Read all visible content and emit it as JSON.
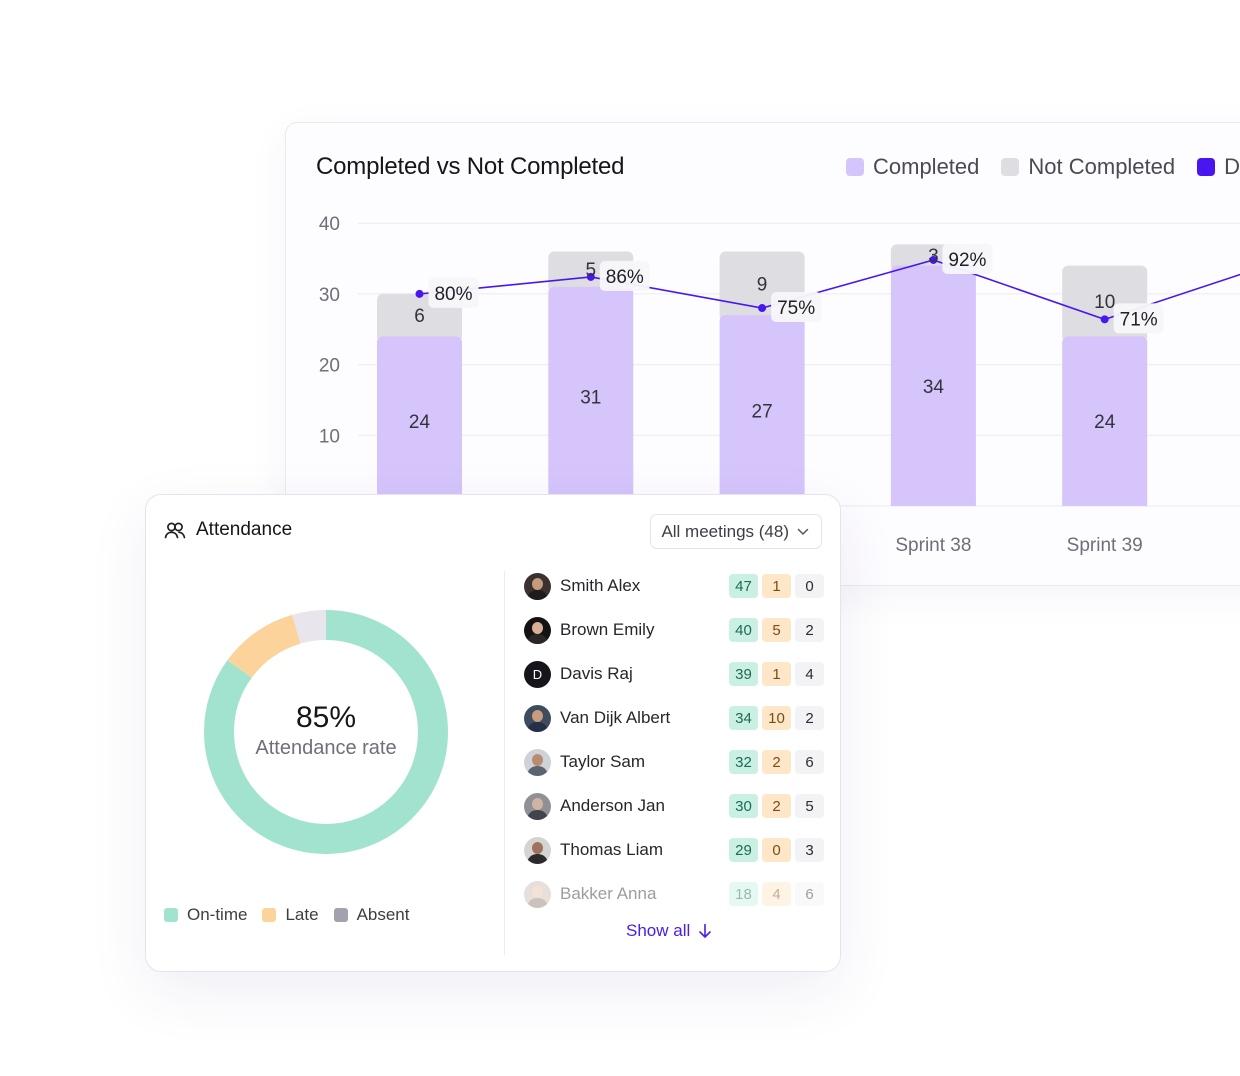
{
  "chart": {
    "title": "Completed vs Not Completed",
    "legend": [
      {
        "label": "Completed",
        "color": "#d5c5fb"
      },
      {
        "label": "Not Completed",
        "color": "#dedde2"
      },
      {
        "label": "D",
        "color": "#4a16f0"
      }
    ],
    "y_ticks": [
      "40",
      "30",
      "20",
      "10"
    ],
    "x_labels": [
      "Sprint 38",
      "Sprint 39"
    ]
  },
  "chart_data": {
    "type": "bar",
    "stacked": true,
    "categories": [
      "",
      "",
      "",
      "Sprint 38",
      "Sprint 39"
    ],
    "series": [
      {
        "name": "Completed",
        "values": [
          24,
          31,
          27,
          34,
          24
        ]
      },
      {
        "name": "Not Completed",
        "values": [
          6,
          5,
          9,
          3,
          10
        ]
      }
    ],
    "line_series": {
      "values": [
        80,
        86,
        75,
        92,
        71
      ],
      "labels": [
        "80%",
        "86%",
        "75%",
        "92%",
        "71%"
      ]
    },
    "ylim": [
      0,
      40
    ],
    "y_ticks": [
      10,
      20,
      30,
      40
    ],
    "grid": true,
    "legend_position": "top-right"
  },
  "attendance": {
    "title": "Attendance",
    "filter_label": "All meetings (48)",
    "rate_value": "85%",
    "rate_label": "Attendance rate",
    "donut": {
      "segments": [
        {
          "name": "On-time",
          "fraction": 0.85,
          "color": "#a1e3cf"
        },
        {
          "name": "Late",
          "fraction": 0.105,
          "color": "#fdd39c"
        },
        {
          "name": "Absent",
          "fraction": 0.045,
          "color": "#e8e6ec"
        }
      ]
    },
    "legend": [
      {
        "label": "On-time",
        "color": "#a1e3cf"
      },
      {
        "label": "Late",
        "color": "#fdd39c"
      },
      {
        "label": "Absent",
        "color": "#a3a1ab"
      }
    ],
    "people": [
      {
        "name": "Smith Alex",
        "on_time": "47",
        "late": "1",
        "absent": "0"
      },
      {
        "name": "Brown Emily",
        "on_time": "40",
        "late": "5",
        "absent": "2"
      },
      {
        "name": "Davis Raj",
        "initial": "D",
        "on_time": "39",
        "late": "1",
        "absent": "4"
      },
      {
        "name": "Van Dijk Albert",
        "on_time": "34",
        "late": "10",
        "absent": "2"
      },
      {
        "name": "Taylor Sam",
        "on_time": "32",
        "late": "2",
        "absent": "6"
      },
      {
        "name": "Anderson Jan",
        "on_time": "30",
        "late": "2",
        "absent": "5"
      },
      {
        "name": "Thomas Liam",
        "on_time": "29",
        "late": "0",
        "absent": "3"
      },
      {
        "name": "Bakker Anna",
        "on_time": "18",
        "late": "4",
        "absent": "6"
      }
    ],
    "show_all": "Show all"
  }
}
